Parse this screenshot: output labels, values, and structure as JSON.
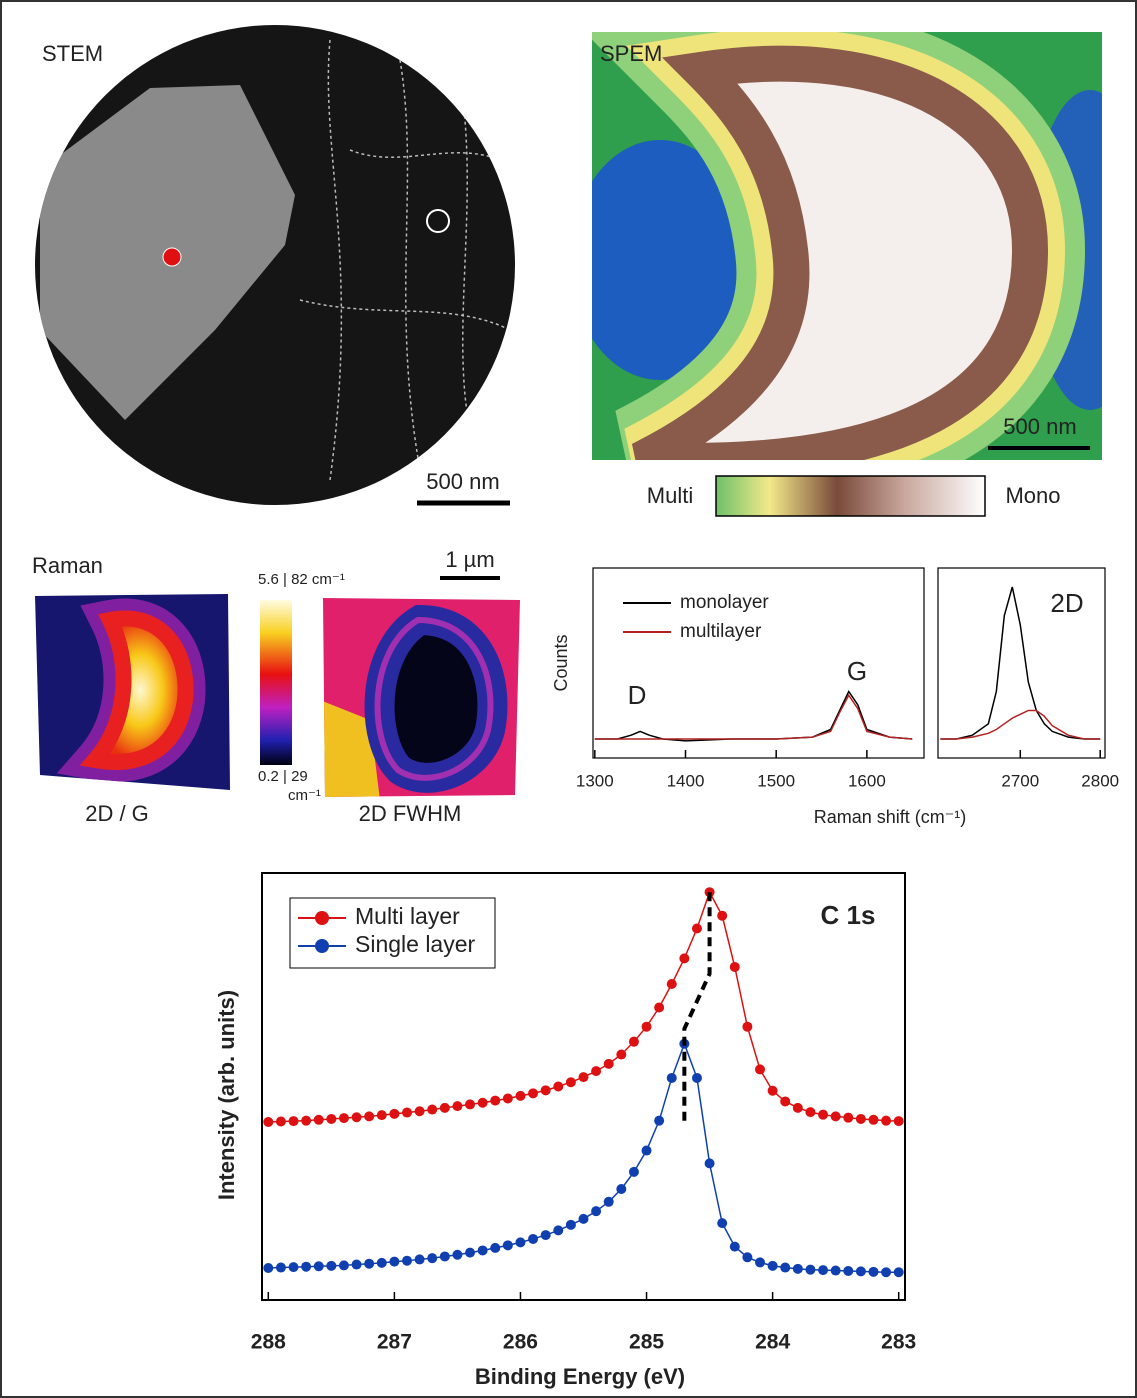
{
  "panels": {
    "stem": {
      "label": "STEM",
      "scale_bar": "500 nm"
    },
    "spem": {
      "label": "SPEM",
      "scale_bar": "500 nm",
      "colorbar_left": "Multi",
      "colorbar_right": "Mono"
    },
    "raman": {
      "label": "Raman",
      "scale_bar": "1 µm",
      "map1_label": "2D / G",
      "map2_label": "2D FWHM",
      "colorbar_top": "5.6 | 82 cm⁻¹",
      "colorbar_bottom": "0.2 | 29",
      "colorbar_unit": "cm⁻¹"
    }
  },
  "chart_data": [
    {
      "type": "line",
      "ylabel": "Counts",
      "xlabel": "Raman shift (cm⁻¹)",
      "x": [
        1300,
        1325,
        1340,
        1350,
        1360,
        1375,
        1400,
        1450,
        1500,
        1540,
        1560,
        1570,
        1580,
        1590,
        1600,
        1625,
        1650
      ],
      "xlim": [
        1298,
        1663
      ],
      "xticks": [
        1300,
        1400,
        1500,
        1600
      ],
      "ylim": [
        0,
        100
      ],
      "series": [
        {
          "name": "monolayer",
          "color": "#000000",
          "values": [
            10,
            10,
            12,
            14,
            12,
            10,
            9,
            10,
            10,
            11,
            15,
            25,
            35,
            28,
            15,
            11,
            10
          ]
        },
        {
          "name": "multilayer",
          "color": "#b22222",
          "values": [
            10,
            10,
            10,
            10,
            10,
            10,
            10,
            10,
            10,
            11,
            14,
            24,
            33,
            26,
            14,
            11,
            10
          ]
        }
      ],
      "annotations": [
        "D",
        "G"
      ]
    },
    {
      "type": "line",
      "x": [
        2600,
        2620,
        2640,
        2660,
        2670,
        2680,
        2690,
        2700,
        2710,
        2720,
        2730,
        2740,
        2760,
        2780,
        2800
      ],
      "xlim": [
        2597,
        2806
      ],
      "xticks": [
        2700,
        2800
      ],
      "ylim": [
        0,
        100
      ],
      "series": [
        {
          "color": "#000000",
          "values": [
            10,
            10,
            12,
            18,
            35,
            75,
            90,
            70,
            40,
            25,
            18,
            14,
            11,
            10,
            10
          ]
        },
        {
          "color": "#b22222",
          "values": [
            10,
            10,
            11,
            13,
            15,
            18,
            21,
            23,
            25,
            25,
            22,
            17,
            12,
            10,
            10
          ]
        }
      ],
      "annotations": [
        "2D"
      ]
    },
    {
      "type": "line",
      "markers": true,
      "xlabel": "Binding Energy (eV)",
      "ylabel": "Intensity (arb. units)",
      "x": [
        288,
        287.9,
        287.8,
        287.7,
        287.6,
        287.5,
        287.4,
        287.3,
        287.2,
        287.1,
        287,
        286.9,
        286.8,
        286.7,
        286.6,
        286.5,
        286.4,
        286.3,
        286.2,
        286.1,
        286,
        285.9,
        285.8,
        285.7,
        285.6,
        285.5,
        285.4,
        285.3,
        285.2,
        285.1,
        285,
        284.9,
        284.8,
        284.7,
        284.6,
        284.5,
        284.4,
        284.3,
        284.2,
        284.1,
        284,
        283.9,
        283.8,
        283.7,
        283.6,
        283.5,
        283.4,
        283.3,
        283.2,
        283.1,
        283
      ],
      "xlim": [
        288.05,
        282.95
      ],
      "xticks": [
        288,
        287,
        286,
        285,
        284,
        283
      ],
      "ylim": [
        0,
        100
      ],
      "series": [
        {
          "name": "Multi layer",
          "color": "#dd1111",
          "values": [
            41.7,
            41.8,
            41.9,
            42.0,
            42.2,
            42.4,
            42.6,
            42.8,
            43.0,
            43.3,
            43.6,
            43.9,
            44.2,
            44.6,
            45.0,
            45.4,
            45.8,
            46.2,
            46.7,
            47.2,
            47.8,
            48.4,
            49.1,
            50.0,
            51.0,
            52.2,
            53.6,
            55.3,
            57.5,
            60.5,
            64.0,
            68.5,
            74.0,
            80.0,
            87.0,
            95.5,
            90.0,
            78.0,
            64.0,
            54.0,
            49.0,
            46.5,
            45.0,
            44.0,
            43.4,
            43.0,
            42.7,
            42.4,
            42.2,
            42.0,
            41.9
          ]
        },
        {
          "name": "Single layer",
          "color": "#1040b0",
          "values": [
            7.5,
            7.6,
            7.7,
            7.8,
            7.9,
            8.0,
            8.1,
            8.3,
            8.5,
            8.7,
            9.0,
            9.2,
            9.5,
            9.8,
            10.2,
            10.6,
            11.1,
            11.6,
            12.2,
            12.8,
            13.5,
            14.3,
            15.2,
            16.3,
            17.6,
            19.0,
            20.8,
            23.0,
            26.0,
            30.0,
            35.0,
            42.0,
            52.0,
            60.0,
            52.0,
            32.0,
            18.0,
            12.5,
            10.0,
            8.8,
            8.0,
            7.6,
            7.3,
            7.1,
            7.0,
            6.9,
            6.8,
            6.7,
            6.6,
            6.5,
            6.5
          ]
        }
      ],
      "annotations": [
        "C 1s"
      ]
    }
  ]
}
